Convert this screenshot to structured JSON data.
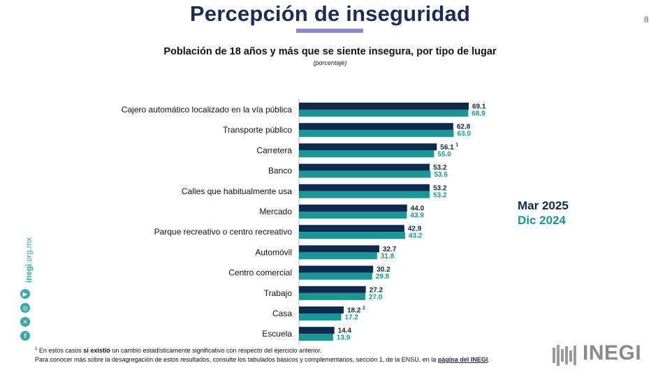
{
  "title": "Percepción de inseguridad",
  "page_number": "8",
  "chart_data": {
    "type": "bar",
    "orientation": "horizontal",
    "title": "Población de 18 años y más que se siente insegura, por tipo de lugar",
    "subtitle": "(porcentaje)",
    "categories": [
      "Cajero automático localizado en la vía pública",
      "Transporte público",
      "Carretera",
      "Banco",
      "Calles que habitualmente usa",
      "Mercado",
      "Parque recreativo o centro recreativo",
      "Automóvil",
      "Centro comercial",
      "Trabajo",
      "Casa",
      "Escuela"
    ],
    "series": [
      {
        "name": "Mar 2025",
        "color": "#0e2b4d",
        "values": [
          69.1,
          62.8,
          56.1,
          53.2,
          53.2,
          44.0,
          42.9,
          32.7,
          30.2,
          27.2,
          18.2,
          14.4
        ],
        "labels": [
          "69.1",
          "62.8",
          "56.1",
          "53.2",
          "53.2",
          "44.0",
          "42.9",
          "32.7",
          "30.2",
          "27.2",
          "18.2",
          "14.4"
        ],
        "footnote_marks": [
          "",
          "",
          "1",
          "",
          "",
          "",
          "",
          "",
          "",
          "",
          "1",
          ""
        ]
      },
      {
        "name": "Dic 2024",
        "color": "#1b9696",
        "values": [
          68.9,
          63.0,
          55.0,
          53.6,
          53.2,
          43.9,
          43.2,
          31.8,
          29.8,
          27.0,
          17.2,
          13.9
        ],
        "labels": [
          "68.9",
          "63.0",
          "55.0",
          "53.6",
          "53.2",
          "43.9",
          "43.2",
          "31.8",
          "29.8",
          "27.0",
          "17.2",
          "13.9"
        ]
      }
    ],
    "xlim": [
      0,
      100
    ],
    "grid": false,
    "legend_position": "right"
  },
  "legend": {
    "series_a": "Mar 2025",
    "series_b": "Dic 2024",
    "color_a": "#0e2b4d",
    "color_b": "#1b9696"
  },
  "footnote": {
    "mark": "1",
    "line1_pre": " En estos casos ",
    "line1_bold": "si existió",
    "line1_post": " un cambio estadísticamente significativo con respecto del ejercicio anterior.",
    "line2_pre": "Para conocer más sobre la desagregación de estos resultados, consulte los tabulados básicos y complementarios, sección 1, de la ENSU, en la ",
    "line2_link": "página del INEGI",
    "line2_post": "."
  },
  "sidebar": {
    "site_bold": "inegi",
    "site_rest": ".org.mx",
    "icons": [
      "youtube-icon",
      "instagram-icon",
      "x-icon",
      "facebook-icon"
    ]
  },
  "logo": {
    "text": "INEGI"
  }
}
